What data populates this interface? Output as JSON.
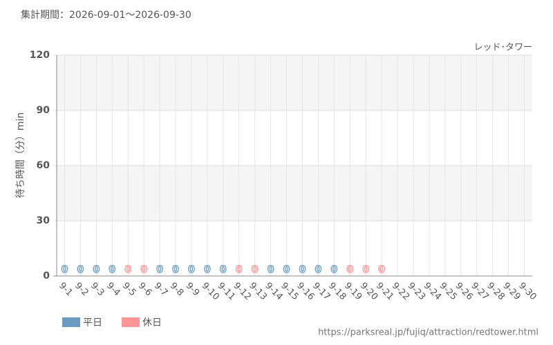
{
  "chart_data": {
    "type": "bar",
    "subtitle": "集計期間：2026-09-01～2026-09-30",
    "series_label": "レッド･タワー",
    "y_label": "待ち時間（分）min",
    "footer": "https://parksreal.jp/fujiq/attraction/redtower.html",
    "categories": [
      "9-1",
      "9-2",
      "9-3",
      "9-4",
      "9-5",
      "9-6",
      "9-7",
      "9-8",
      "9-9",
      "9-10",
      "9-11",
      "9-12",
      "9-13",
      "9-14",
      "9-15",
      "9-16",
      "9-17",
      "9-18",
      "9-19",
      "9-20",
      "9-21",
      "9-22",
      "9-23",
      "9-24",
      "9-25",
      "9-26",
      "9-27",
      "9-28",
      "9-29",
      "9-30"
    ],
    "values": [
      0,
      0,
      0,
      0,
      0,
      0,
      0,
      0,
      0,
      0,
      0,
      0,
      0,
      0,
      0,
      0,
      0,
      0,
      0,
      0,
      0,
      null,
      null,
      null,
      null,
      null,
      null,
      null,
      null,
      null
    ],
    "colors": [
      "#6a9bc3",
      "#6a9bc3",
      "#6a9bc3",
      "#6a9bc3",
      "#ff9494",
      "#ff9494",
      "#6a9bc3",
      "#6a9bc3",
      "#6a9bc3",
      "#6a9bc3",
      "#6a9bc3",
      "#ff9494",
      "#ff9494",
      "#6a9bc3",
      "#6a9bc3",
      "#6a9bc3",
      "#6a9bc3",
      "#6a9bc3",
      "#ff9494",
      "#ff9494",
      "#ff9494",
      "#ff9494",
      "#ff9494",
      "#6a9bc3",
      "#6a9bc3",
      "#ff9494",
      "#ff9494",
      "#6a9bc3",
      "#6a9bc3",
      "#6a9bc3"
    ],
    "legend": [
      {
        "name": "平日",
        "color": "#6a9bc3"
      },
      {
        "name": "休日",
        "color": "#ff9494"
      }
    ],
    "ylim": [
      0,
      120
    ],
    "yticks": [
      0,
      30,
      60,
      90,
      120
    ],
    "grid": true
  }
}
